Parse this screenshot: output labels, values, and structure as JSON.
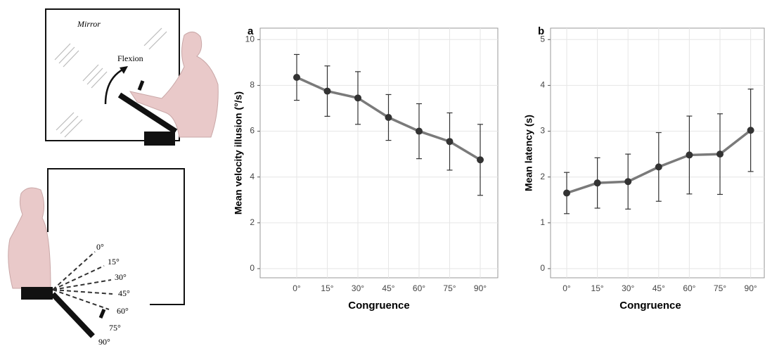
{
  "illustration": {
    "mirror_label": "Mirror",
    "flexion_label": "Flexion",
    "angles": [
      "0°",
      "15°",
      "30°",
      "45°",
      "60°",
      "75°",
      "90°"
    ]
  },
  "chart_data": [
    {
      "type": "line",
      "panel": "a",
      "x_label": "Congruence",
      "y_label": "Mean velocity illusion (°/s)",
      "categories": [
        "0°",
        "15°",
        "30°",
        "45°",
        "60°",
        "75°",
        "90°"
      ],
      "values": [
        8.35,
        7.75,
        7.45,
        6.6,
        6.0,
        5.55,
        4.75
      ],
      "errors": [
        1.0,
        1.1,
        1.15,
        1.0,
        1.2,
        1.25,
        1.55
      ],
      "color": "#7a7a7a",
      "ylim": [
        -0.4,
        10.5
      ],
      "yticks": [
        0,
        2,
        4,
        6,
        8,
        10
      ],
      "grid": true
    },
    {
      "type": "line",
      "panel": "b",
      "x_label": "Congruence",
      "y_label": "Mean latency (s)",
      "categories": [
        "0°",
        "15°",
        "30°",
        "45°",
        "60°",
        "75°",
        "90°"
      ],
      "values": [
        1.65,
        1.87,
        1.9,
        2.22,
        2.48,
        2.5,
        3.02
      ],
      "errors": [
        0.45,
        0.55,
        0.6,
        0.75,
        0.85,
        0.88,
        0.9
      ],
      "color": "#7a7a7a",
      "ylim": [
        -0.2,
        5.25
      ],
      "yticks": [
        0,
        1,
        2,
        3,
        4,
        5
      ],
      "grid": true
    }
  ]
}
